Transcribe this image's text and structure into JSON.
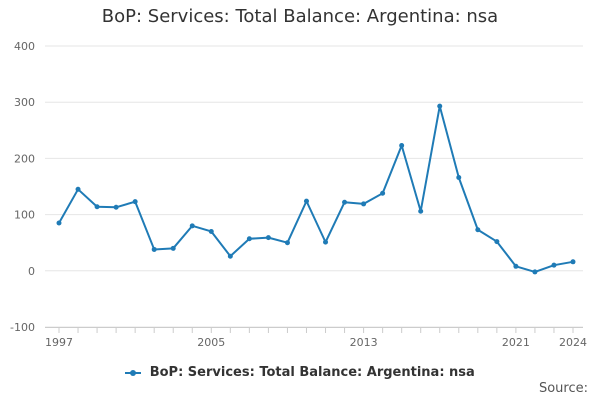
{
  "chart_data": {
    "type": "line",
    "title": "BoP: Services: Total Balance: Argentina: nsa",
    "x": [
      1997,
      1998,
      1999,
      2000,
      2001,
      2002,
      2003,
      2004,
      2005,
      2006,
      2007,
      2008,
      2009,
      2010,
      2011,
      2012,
      2013,
      2014,
      2015,
      2016,
      2017,
      2018,
      2019,
      2020,
      2021,
      2022,
      2023,
      2024
    ],
    "series": [
      {
        "name": "BoP: Services: Total Balance: Argentina: nsa",
        "color": "#1f7bb6",
        "values": [
          85,
          145,
          114,
          113,
          123,
          38,
          40,
          80,
          70,
          26,
          57,
          59,
          50,
          124,
          51,
          122,
          119,
          138,
          223,
          106,
          293,
          166,
          73,
          52,
          8,
          -2,
          10,
          16
        ]
      }
    ],
    "xticks": [
      1997,
      2005,
      2013,
      2021,
      2024
    ],
    "yticks": [
      -100,
      0,
      100,
      200,
      300,
      400
    ],
    "xlim": [
      1997,
      2024
    ],
    "ylim": [
      -100,
      400
    ],
    "xlabel": "",
    "ylabel": "",
    "grid": "horizontal",
    "legend_position": "bottom-center"
  },
  "source_label": "Source:"
}
